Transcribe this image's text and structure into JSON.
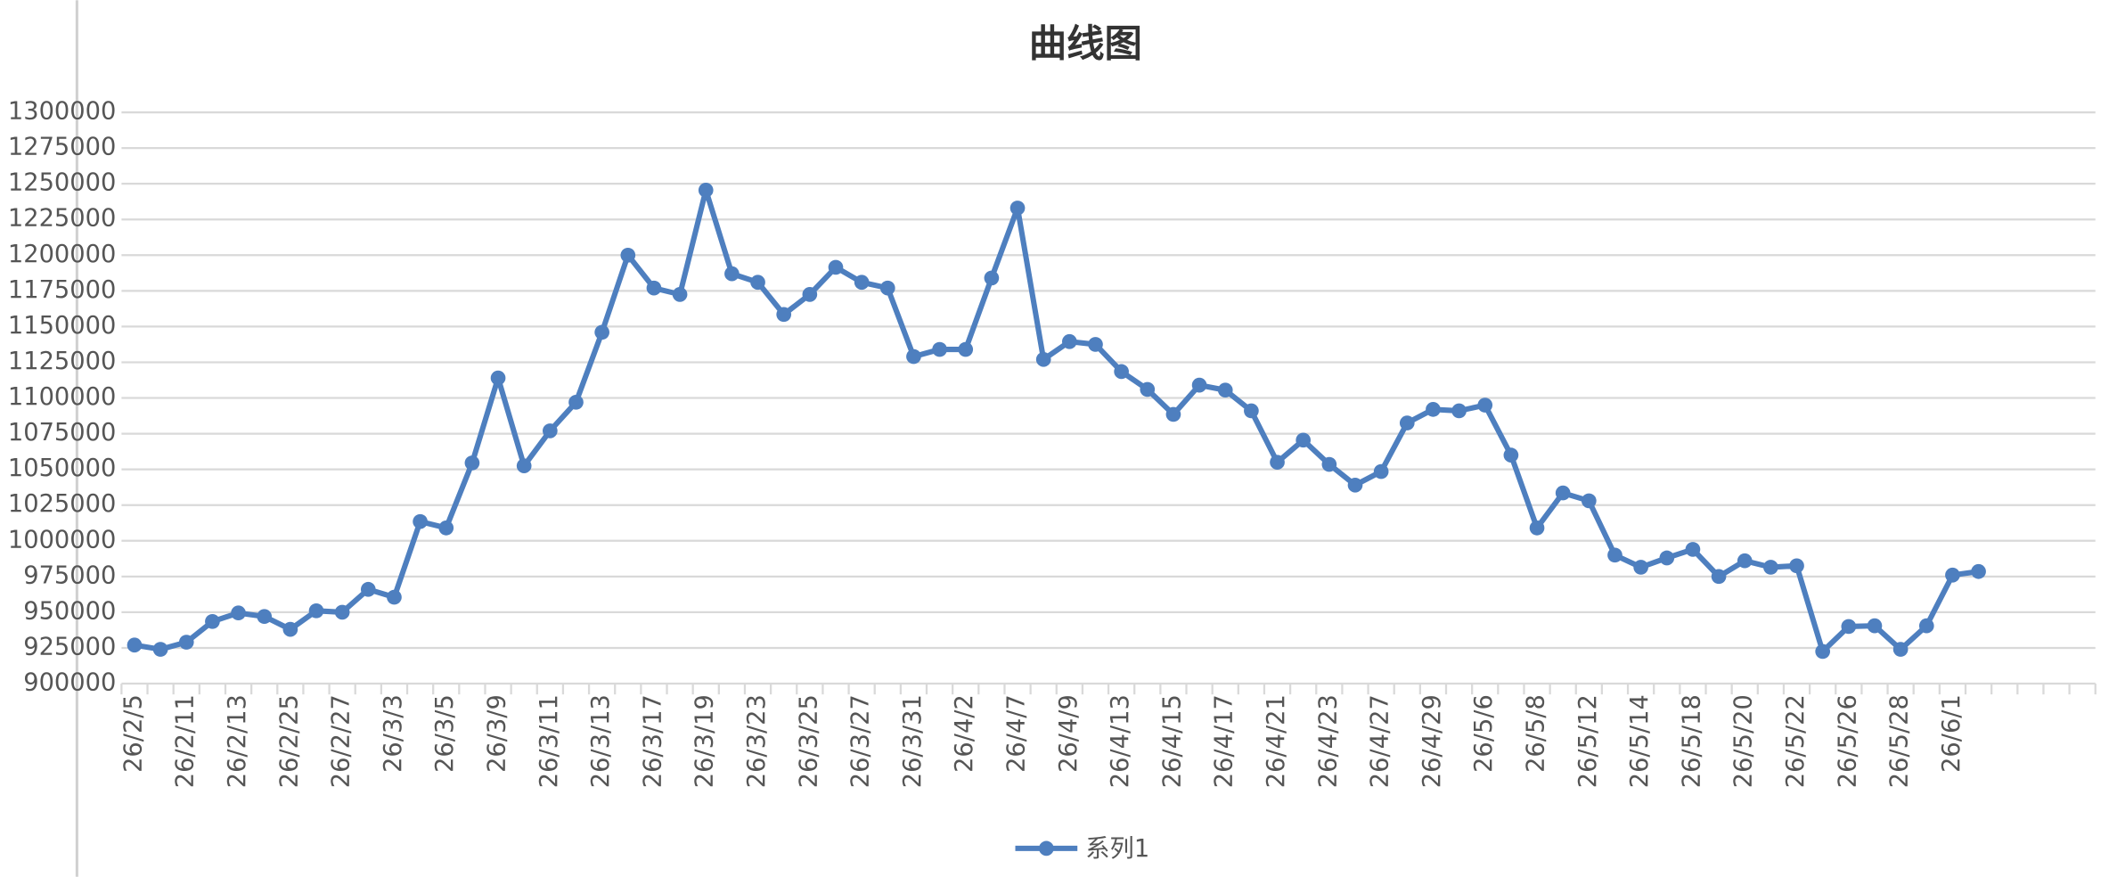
{
  "chart_data": {
    "type": "line",
    "title": "曲线图",
    "categories": [
      "26/2/5",
      null,
      "26/2/11",
      null,
      "26/2/13",
      null,
      "26/2/25",
      null,
      "26/2/27",
      null,
      "26/3/3",
      null,
      "26/3/5",
      null,
      "26/3/9",
      null,
      "26/3/11",
      null,
      "26/3/13",
      null,
      "26/3/17",
      null,
      "26/3/19",
      null,
      "26/3/23",
      null,
      "26/3/25",
      null,
      "26/3/27",
      null,
      "26/3/31",
      null,
      "26/4/2",
      null,
      "26/4/7",
      null,
      "26/4/9",
      null,
      "26/4/13",
      null,
      "26/4/15",
      null,
      "26/4/17",
      null,
      "26/4/21",
      null,
      "26/4/23",
      null,
      "26/4/27",
      null,
      "26/4/29",
      null,
      "26/5/6",
      null,
      "26/5/8",
      null,
      "26/5/12",
      null,
      "26/5/14",
      null,
      "26/5/18",
      null,
      "26/5/20",
      null,
      "26/5/22",
      null,
      "26/5/26",
      null,
      "26/5/28",
      null,
      "26/6/1",
      null,
      null,
      null,
      null,
      null
    ],
    "series": [
      {
        "name": "系列1",
        "color": "#4e7fbf",
        "values": [
          927000,
          924000,
          929000,
          943500,
          949500,
          947000,
          938000,
          951000,
          950000,
          966000,
          960500,
          1013500,
          1009000,
          1054500,
          1114000,
          1052500,
          1077000,
          1097000,
          1146000,
          1200000,
          1177000,
          1172500,
          1245500,
          1187000,
          1181000,
          1158500,
          1172500,
          1191500,
          1181000,
          1177000,
          1129000,
          1134000,
          1134000,
          1184000,
          1233000,
          1127000,
          1139500,
          1137500,
          1118500,
          1106000,
          1088500,
          1109000,
          1105500,
          1091000,
          1055000,
          1070500,
          1053500,
          1039000,
          1048500,
          1082500,
          1092000,
          1091000,
          1095000,
          1060000,
          1009000,
          1033500,
          1028000,
          990000,
          981500,
          988000,
          994000,
          975000,
          986000,
          981500,
          982500,
          922500,
          940000,
          940500,
          924000,
          940500,
          976000,
          978500,
          null,
          null,
          null,
          null
        ]
      }
    ],
    "ylim": [
      900000,
      1300000
    ],
    "yticks": [
      900000,
      925000,
      950000,
      975000,
      1000000,
      1025000,
      1050000,
      1075000,
      1100000,
      1125000,
      1150000,
      1175000,
      1200000,
      1225000,
      1250000,
      1275000,
      1300000
    ],
    "grid": true,
    "legend": "bottom"
  }
}
